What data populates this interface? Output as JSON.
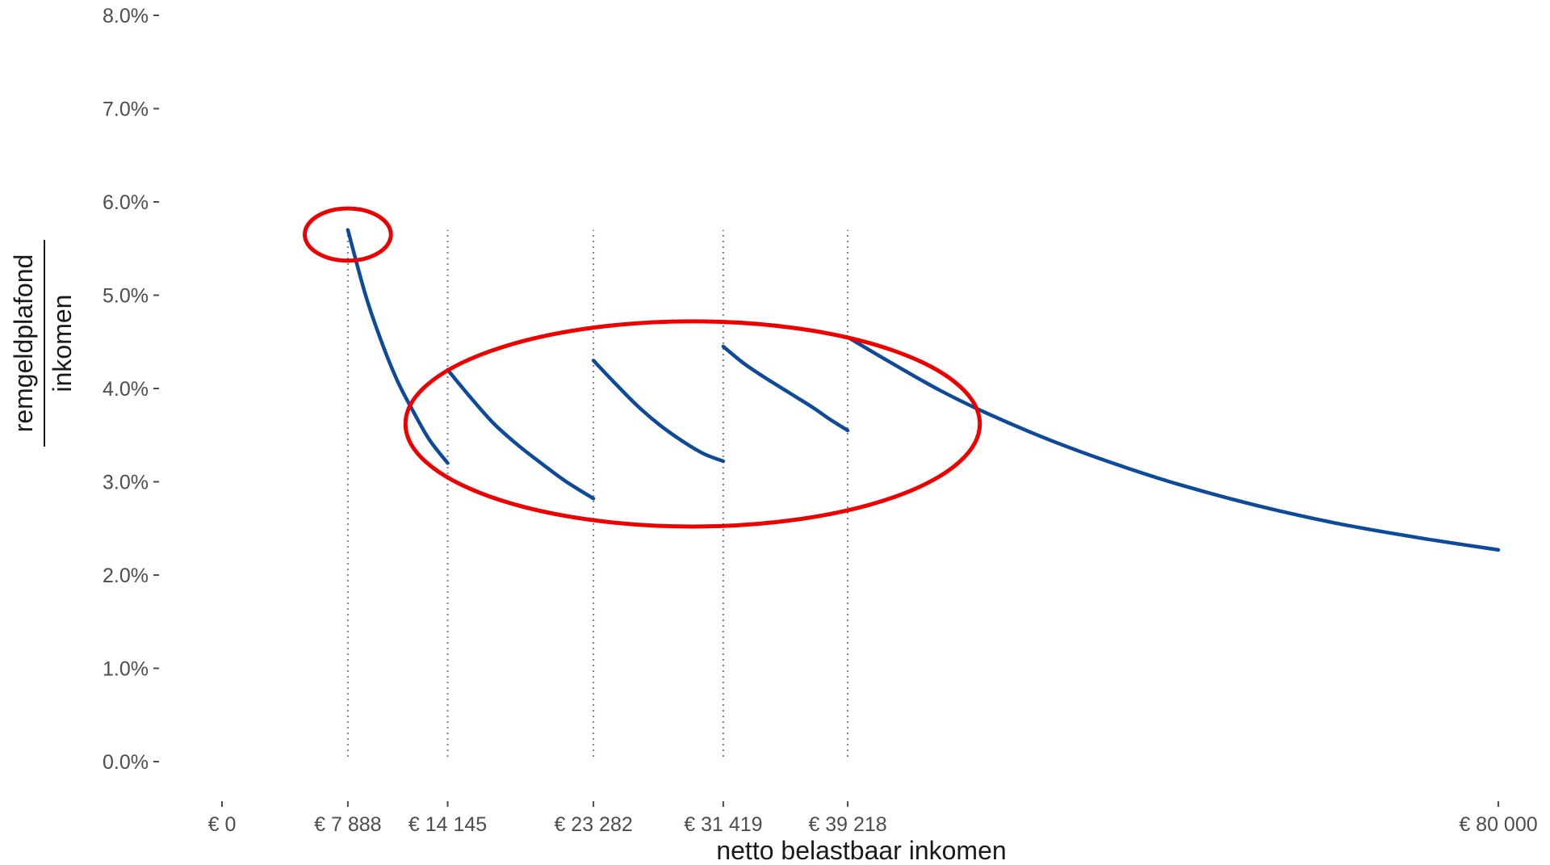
{
  "chart_data": {
    "type": "line",
    "title": "",
    "xlabel": "netto belastbaar inkomen",
    "ylabel_numerator": "remgeldplafond",
    "ylabel_denominator": "inkomen",
    "xlim": [
      0,
      80000
    ],
    "ylim": [
      0,
      8
    ],
    "x_ticks": [
      {
        "value": 0,
        "label": "€ 0"
      },
      {
        "value": 7888,
        "label": "€ 7 888"
      },
      {
        "value": 14145,
        "label": "€ 14 145"
      },
      {
        "value": 23282,
        "label": "€ 23 282"
      },
      {
        "value": 31419,
        "label": "€ 31 419"
      },
      {
        "value": 39218,
        "label": "€ 39 218"
      },
      {
        "value": 80000,
        "label": "€ 80 000"
      }
    ],
    "y_ticks": [
      {
        "value": 0,
        "label": "0.0%"
      },
      {
        "value": 1,
        "label": "1.0%"
      },
      {
        "value": 2,
        "label": "2.0%"
      },
      {
        "value": 3,
        "label": "3.0%"
      },
      {
        "value": 4,
        "label": "4.0%"
      },
      {
        "value": 5,
        "label": "5.0%"
      },
      {
        "value": 6,
        "label": "6.0%"
      },
      {
        "value": 7,
        "label": "7.0%"
      },
      {
        "value": 8,
        "label": "8.0%"
      }
    ],
    "guides_x": [
      7888,
      14145,
      23282,
      31419,
      39218
    ],
    "segments": [
      {
        "name": "",
        "points": [
          [
            7888,
            5.7
          ],
          [
            9000,
            5.0
          ],
          [
            10000,
            4.5
          ],
          [
            11000,
            4.08
          ],
          [
            12000,
            3.75
          ],
          [
            13000,
            3.45
          ],
          [
            14145,
            3.2
          ]
        ]
      },
      {
        "name": "",
        "points": [
          [
            14145,
            4.2
          ],
          [
            15500,
            3.92
          ],
          [
            17000,
            3.63
          ],
          [
            18500,
            3.4
          ],
          [
            20000,
            3.2
          ],
          [
            21500,
            3.01
          ],
          [
            23282,
            2.82
          ]
        ]
      },
      {
        "name": "",
        "points": [
          [
            23282,
            4.3
          ],
          [
            24500,
            4.08
          ],
          [
            26000,
            3.82
          ],
          [
            27500,
            3.6
          ],
          [
            29000,
            3.42
          ],
          [
            30200,
            3.3
          ],
          [
            31419,
            3.22
          ]
        ]
      },
      {
        "name": "",
        "points": [
          [
            31419,
            4.45
          ],
          [
            32700,
            4.27
          ],
          [
            34000,
            4.12
          ],
          [
            35500,
            3.96
          ],
          [
            37000,
            3.8
          ],
          [
            38100,
            3.67
          ],
          [
            39218,
            3.55
          ]
        ]
      },
      {
        "name": "",
        "points": [
          [
            39218,
            4.55
          ],
          [
            42000,
            4.27
          ],
          [
            45000,
            3.98
          ],
          [
            48000,
            3.73
          ],
          [
            52000,
            3.44
          ],
          [
            56000,
            3.19
          ],
          [
            60000,
            2.97
          ],
          [
            65000,
            2.74
          ],
          [
            70000,
            2.55
          ],
          [
            75000,
            2.4
          ],
          [
            80000,
            2.27
          ]
        ]
      }
    ],
    "annotations": [
      {
        "shape": "ellipse",
        "color": "#ee0000",
        "center": [
          7888,
          5.65
        ],
        "radii_data": [
          2700,
          0.28
        ]
      },
      {
        "shape": "ellipse",
        "color": "#ee0000",
        "center": [
          29500,
          3.62
        ],
        "radii_data": [
          18000,
          1.1
        ]
      }
    ],
    "line_color": "#0e4a9a",
    "guide_color": "#7f7f7f",
    "grid": false,
    "legend": "none"
  }
}
